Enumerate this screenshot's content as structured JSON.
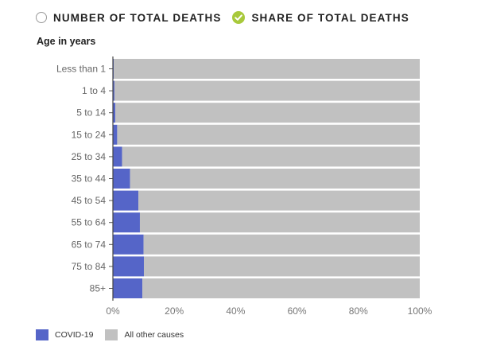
{
  "toggles": [
    {
      "label": "NUMBER OF TOTAL DEATHS",
      "selected": false
    },
    {
      "label": "SHARE OF TOTAL DEATHS",
      "selected": true
    }
  ],
  "colors": {
    "covid": "#5565c8",
    "other": "#c1c1c1",
    "check": "#a8c93b"
  },
  "chart_data": {
    "type": "bar",
    "orientation": "horizontal",
    "stacked": true,
    "ylabel": "Age in years",
    "categories": [
      "Less than 1",
      "1 to 4",
      "5 to 14",
      "15 to 24",
      "25 to 34",
      "35 to 44",
      "45 to 54",
      "55 to 64",
      "65 to 74",
      "75 to 84",
      "85+"
    ],
    "series": [
      {
        "name": "COVID-19",
        "values": [
          0.3,
          0.5,
          0.8,
          1.4,
          3.0,
          5.6,
          8.3,
          8.8,
          10.0,
          10.1,
          9.6
        ]
      },
      {
        "name": "All other causes",
        "values": [
          99.7,
          99.5,
          99.2,
          98.6,
          97.0,
          94.4,
          91.7,
          91.2,
          90.0,
          89.9,
          90.4
        ]
      }
    ],
    "xlim": [
      0,
      100
    ],
    "xticks": [
      "0%",
      "20%",
      "40%",
      "60%",
      "80%",
      "100%"
    ],
    "legend_position": "bottom-left"
  }
}
